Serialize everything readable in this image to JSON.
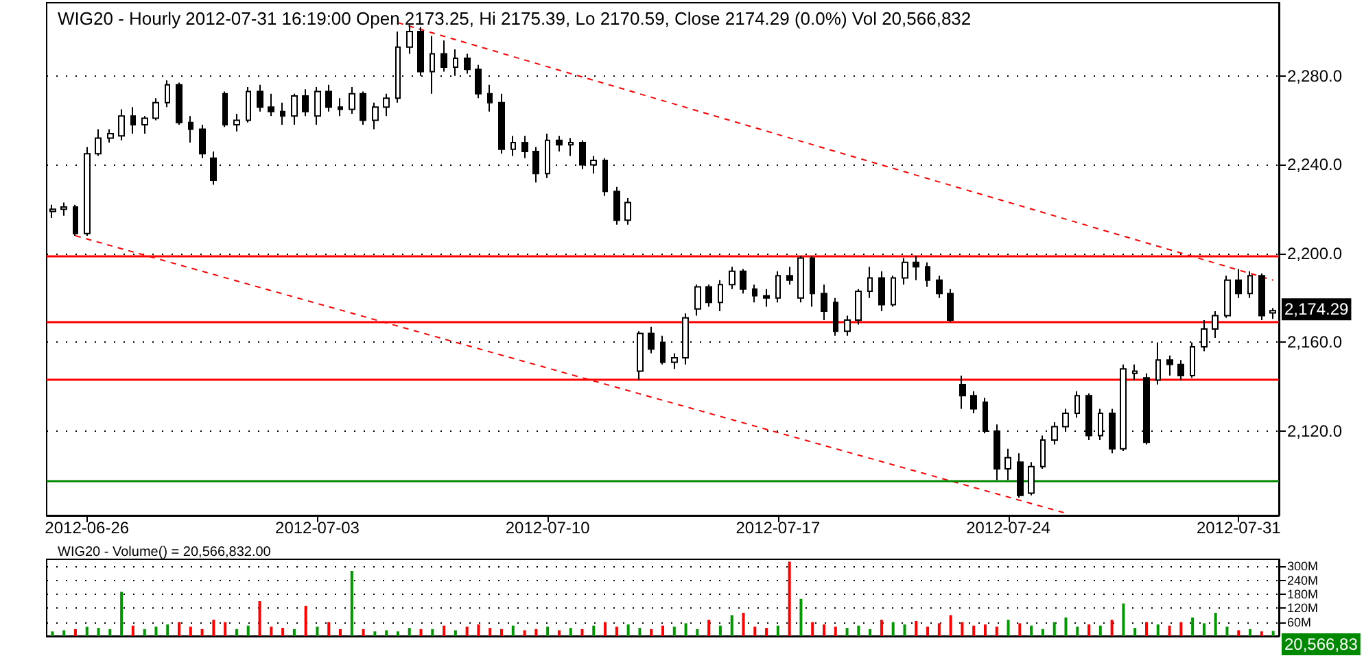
{
  "chart_data": [
    {
      "type": "candlestick",
      "title": "WIG20 - Hourly 2012-07-31 16:19:00 Open 2173.25, Hi 2175.39, Lo 2170.59, Close 2174.29 (0.0%) Vol 20,566,832",
      "categories": [
        null,
        null,
        null,
        "2012-06-26",
        null,
        null,
        null,
        null,
        null,
        null,
        null,
        null,
        null,
        null,
        null,
        null,
        null,
        null,
        null,
        null,
        null,
        null,
        null,
        "2012-07-03",
        null,
        null,
        null,
        null,
        null,
        null,
        null,
        null,
        null,
        null,
        null,
        null,
        null,
        null,
        null,
        null,
        null,
        null,
        null,
        "2012-07-10",
        null,
        null,
        null,
        null,
        null,
        null,
        null,
        null,
        null,
        null,
        null,
        null,
        null,
        null,
        null,
        null,
        null,
        null,
        null,
        "2012-07-17",
        null,
        null,
        null,
        null,
        null,
        null,
        null,
        null,
        null,
        null,
        null,
        null,
        null,
        null,
        null,
        null,
        null,
        null,
        null,
        "2012-07-24",
        null,
        null,
        null,
        null,
        null,
        null,
        null,
        null,
        null,
        null,
        null,
        null,
        null,
        null,
        null,
        null,
        null,
        null,
        null,
        "2012-07-31",
        null,
        null,
        null
      ],
      "ohlc": [
        [
          2219,
          2222,
          2216,
          2220
        ],
        [
          2220,
          2223,
          2217,
          2221
        ],
        [
          2221,
          2222,
          2208,
          2209
        ],
        [
          2209,
          2248,
          2208,
          2245
        ],
        [
          2245,
          2256,
          2244,
          2252
        ],
        [
          2252,
          2256,
          2250,
          2254
        ],
        [
          2253,
          2265,
          2251,
          2262
        ],
        [
          2262,
          2266,
          2254,
          2258
        ],
        [
          2258,
          2262,
          2254,
          2261
        ],
        [
          2261,
          2270,
          2260,
          2268
        ],
        [
          2268,
          2278,
          2266,
          2276
        ],
        [
          2276,
          2277,
          2258,
          2259
        ],
        [
          2259,
          2262,
          2250,
          2256
        ],
        [
          2256,
          2258,
          2243,
          2245
        ],
        [
          2243,
          2246,
          2231,
          2233
        ],
        [
          2272,
          2273,
          2257,
          2258
        ],
        [
          2258,
          2263,
          2255,
          2260
        ],
        [
          2260,
          2275,
          2259,
          2273
        ],
        [
          2273,
          2276,
          2264,
          2266
        ],
        [
          2266,
          2272,
          2262,
          2264
        ],
        [
          2264,
          2268,
          2258,
          2262
        ],
        [
          2262,
          2272,
          2258,
          2271
        ],
        [
          2271,
          2274,
          2262,
          2264
        ],
        [
          2262,
          2275,
          2258,
          2273
        ],
        [
          2273,
          2276,
          2264,
          2266
        ],
        [
          2266,
          2270,
          2262,
          2265
        ],
        [
          2265,
          2275,
          2263,
          2272
        ],
        [
          2272,
          2273,
          2258,
          2260
        ],
        [
          2260,
          2268,
          2256,
          2266
        ],
        [
          2266,
          2272,
          2262,
          2270
        ],
        [
          2270,
          2300,
          2268,
          2293
        ],
        [
          2293,
          2303,
          2290,
          2300
        ],
        [
          2300,
          2302,
          2280,
          2282
        ],
        [
          2282,
          2298,
          2272,
          2290
        ],
        [
          2290,
          2296,
          2282,
          2284
        ],
        [
          2284,
          2292,
          2280,
          2288
        ],
        [
          2288,
          2290,
          2281,
          2283
        ],
        [
          2283,
          2285,
          2270,
          2272
        ],
        [
          2272,
          2276,
          2264,
          2268
        ],
        [
          2268,
          2272,
          2245,
          2247
        ],
        [
          2247,
          2253,
          2244,
          2250
        ],
        [
          2250,
          2253,
          2243,
          2246
        ],
        [
          2246,
          2248,
          2232,
          2236
        ],
        [
          2236,
          2254,
          2234,
          2251
        ],
        [
          2251,
          2253,
          2246,
          2249
        ],
        [
          2249,
          2252,
          2244,
          2250
        ],
        [
          2250,
          2251,
          2238,
          2240
        ],
        [
          2240,
          2244,
          2236,
          2242
        ],
        [
          2242,
          2243,
          2226,
          2228
        ],
        [
          2228,
          2230,
          2213,
          2215
        ],
        [
          2215,
          2225,
          2213,
          2223
        ],
        [
          2147,
          2165,
          2143,
          2164
        ],
        [
          2164,
          2167,
          2155,
          2157
        ],
        [
          2160,
          2163,
          2150,
          2151
        ],
        [
          2151,
          2155,
          2148,
          2153
        ],
        [
          2153,
          2173,
          2150,
          2171
        ],
        [
          2175,
          2186,
          2172,
          2185
        ],
        [
          2185,
          2186,
          2176,
          2178
        ],
        [
          2178,
          2188,
          2174,
          2186
        ],
        [
          2186,
          2194,
          2184,
          2192
        ],
        [
          2192,
          2193,
          2182,
          2184
        ],
        [
          2184,
          2186,
          2178,
          2181
        ],
        [
          2181,
          2184,
          2176,
          2180
        ],
        [
          2180,
          2192,
          2178,
          2190
        ],
        [
          2190,
          2194,
          2186,
          2188
        ],
        [
          2180,
          2199,
          2178,
          2198
        ],
        [
          2198,
          2199,
          2176,
          2182
        ],
        [
          2182,
          2186,
          2170,
          2174
        ],
        [
          2178,
          2180,
          2163,
          2165
        ],
        [
          2165,
          2172,
          2163,
          2170
        ],
        [
          2170,
          2184,
          2168,
          2183
        ],
        [
          2183,
          2194,
          2180,
          2189
        ],
        [
          2189,
          2192,
          2174,
          2177
        ],
        [
          2177,
          2190,
          2176,
          2189
        ],
        [
          2189,
          2198,
          2186,
          2196
        ],
        [
          2196,
          2199,
          2188,
          2194
        ],
        [
          2194,
          2196,
          2185,
          2188
        ],
        [
          2188,
          2190,
          2180,
          2182
        ],
        [
          2182,
          2184,
          2169,
          2170
        ],
        [
          2141,
          2145,
          2130,
          2136
        ],
        [
          2136,
          2138,
          2128,
          2130
        ],
        [
          2133,
          2135,
          2119,
          2120
        ],
        [
          2120,
          2123,
          2098,
          2103
        ],
        [
          2103,
          2112,
          2098,
          2108
        ],
        [
          2106,
          2110,
          2090,
          2091
        ],
        [
          2092,
          2106,
          2091,
          2104
        ],
        [
          2104,
          2118,
          2103,
          2116
        ],
        [
          2116,
          2124,
          2114,
          2122
        ],
        [
          2122,
          2130,
          2120,
          2128
        ],
        [
          2128,
          2138,
          2126,
          2136
        ],
        [
          2136,
          2137,
          2116,
          2118
        ],
        [
          2118,
          2130,
          2116,
          2128
        ],
        [
          2128,
          2130,
          2110,
          2112
        ],
        [
          2112,
          2150,
          2111,
          2148
        ],
        [
          2146,
          2150,
          2143,
          2147
        ],
        [
          2144,
          2146,
          2114,
          2115
        ],
        [
          2143,
          2160,
          2141,
          2152
        ],
        [
          2152,
          2154,
          2145,
          2150
        ],
        [
          2150,
          2152,
          2143,
          2145
        ],
        [
          2145,
          2160,
          2144,
          2158
        ],
        [
          2158,
          2170,
          2156,
          2166
        ],
        [
          2166,
          2174,
          2162,
          2172
        ],
        [
          2172,
          2190,
          2171,
          2188
        ],
        [
          2188,
          2193,
          2180,
          2182
        ],
        [
          2182,
          2192,
          2180,
          2190
        ],
        [
          2190,
          2191,
          2170,
          2172
        ],
        [
          2173.25,
          2175.39,
          2170.59,
          2174.29
        ]
      ],
      "series": [
        {
          "type": "line",
          "color": "#ff0000",
          "line_style": "dashed",
          "values": [
            null,
            null,
            null,
            null,
            null,
            null,
            null,
            null,
            null,
            null,
            null,
            null,
            null,
            null,
            null,
            null,
            null,
            null,
            null,
            null,
            null,
            null,
            null,
            null,
            null,
            null,
            null,
            null,
            null,
            null,
            2304,
            null,
            null,
            null,
            null,
            null,
            null,
            null,
            null,
            null,
            null,
            null,
            null,
            null,
            null,
            null,
            null,
            null,
            null,
            null,
            null,
            null,
            null,
            null,
            null,
            null,
            null,
            null,
            null,
            null,
            null,
            null,
            null,
            null,
            null,
            null,
            null,
            null,
            null,
            null,
            null,
            null,
            null,
            null,
            null,
            null,
            null,
            null,
            null,
            null,
            null,
            null,
            null,
            null,
            null,
            null,
            null,
            null,
            null,
            null,
            null,
            null,
            null,
            null,
            null,
            null,
            null,
            null,
            null,
            null,
            null,
            null,
            null,
            null,
            null,
            null,
            2188
          ]
        },
        {
          "type": "line",
          "color": "#ff0000",
          "line_style": "dashed",
          "values": [
            null,
            null,
            2208,
            null,
            null,
            null,
            null,
            null,
            null,
            null,
            null,
            null,
            null,
            null,
            null,
            null,
            null,
            null,
            null,
            null,
            null,
            null,
            null,
            null,
            null,
            null,
            null,
            null,
            null,
            null,
            null,
            null,
            null,
            null,
            null,
            null,
            null,
            null,
            null,
            null,
            null,
            null,
            null,
            null,
            null,
            null,
            null,
            null,
            null,
            null,
            null,
            null,
            null,
            null,
            null,
            null,
            null,
            null,
            null,
            null,
            null,
            null,
            null,
            null,
            null,
            null,
            null,
            null,
            null,
            null,
            null,
            null,
            null,
            null,
            null,
            null,
            null,
            null,
            null,
            null,
            null,
            null,
            null,
            null,
            null,
            null,
            null,
            null,
            2083,
            null,
            null,
            null,
            null,
            null,
            null,
            null,
            null,
            null,
            null,
            null,
            null,
            null,
            null,
            null,
            null,
            null,
            null
          ]
        }
      ],
      "ref_lines": [
        {
          "axis": "y",
          "value": 2198.8,
          "color": "#ff0000"
        },
        {
          "axis": "y",
          "value": 2169.5,
          "color": "#ff0000"
        },
        {
          "axis": "y",
          "value": 2143.3,
          "color": "#ff0000"
        },
        {
          "axis": "y",
          "value": 2097.3,
          "color": "#008800"
        }
      ],
      "annotations": [
        "2,174.29"
      ],
      "ylim": [
        2082,
        2313
      ],
      "yticks": [
        {
          "value": 2120,
          "label": "2,120.0"
        },
        {
          "value": 2160,
          "label": "2,160.0"
        },
        {
          "value": 2200,
          "label": "2,200.0"
        },
        {
          "value": 2240,
          "label": "2,240.0"
        },
        {
          "value": 2280,
          "label": "2,280.0"
        }
      ],
      "grid": "y"
    },
    {
      "type": "bar",
      "title": "WIG20 - Volume() = 20,566,832.00",
      "categories": [
        null,
        null,
        null,
        null,
        null,
        null,
        null,
        null,
        null,
        null,
        null,
        null,
        null,
        null,
        null,
        null,
        null,
        null,
        null,
        null,
        null,
        null,
        null,
        null,
        null,
        null,
        null,
        null,
        null,
        null,
        null,
        null,
        null,
        null,
        null,
        null,
        null,
        null,
        null,
        null,
        null,
        null,
        null,
        null,
        null,
        null,
        null,
        null,
        null,
        null,
        null,
        null,
        null,
        null,
        null,
        null,
        null,
        null,
        null,
        null,
        null,
        null,
        null,
        null,
        null,
        null,
        null,
        null,
        null,
        null,
        null,
        null,
        null,
        null,
        null,
        null,
        null,
        null,
        null,
        null,
        null,
        null,
        null,
        null,
        null,
        null,
        null,
        null,
        null,
        null,
        null,
        null,
        null,
        null,
        null,
        null,
        null,
        null,
        null,
        null,
        null,
        null,
        null,
        null,
        null,
        null,
        null
      ],
      "values": [
        20,
        25,
        30,
        40,
        35,
        30,
        190,
        45,
        30,
        40,
        50,
        60,
        40,
        30,
        70,
        60,
        30,
        45,
        150,
        40,
        35,
        30,
        130,
        40,
        60,
        30,
        280,
        30,
        20,
        25,
        20,
        35,
        30,
        30,
        45,
        25,
        40,
        50,
        35,
        30,
        45,
        25,
        30,
        40,
        25,
        35,
        30,
        45,
        60,
        40,
        50,
        35,
        30,
        45,
        40,
        55,
        30,
        70,
        45,
        90,
        100,
        40,
        35,
        45,
        320,
        160,
        60,
        50,
        40,
        35,
        45,
        30,
        70,
        60,
        50,
        65,
        40,
        55,
        90,
        60,
        45,
        50,
        40,
        70,
        55,
        45,
        30,
        60,
        80,
        40,
        50,
        45,
        70,
        140,
        35,
        60,
        50,
        45,
        60,
        80,
        55,
        100,
        40,
        25,
        30,
        20,
        22
      ],
      "colors": [
        "#009900",
        "#009900",
        "#ff0000",
        "#009900",
        "#009900",
        "#009900",
        "#009900",
        "#ff0000",
        "#009900",
        "#009900",
        "#009900",
        "#ff0000",
        "#ff0000",
        "#ff0000",
        "#ff0000",
        "#ff0000",
        "#009900",
        "#009900",
        "#ff0000",
        "#ff0000",
        "#ff0000",
        "#009900",
        "#ff0000",
        "#009900",
        "#ff0000",
        "#ff0000",
        "#009900",
        "#ff0000",
        "#009900",
        "#009900",
        "#009900",
        "#009900",
        "#ff0000",
        "#009900",
        "#ff0000",
        "#009900",
        "#ff0000",
        "#ff0000",
        "#ff0000",
        "#ff0000",
        "#009900",
        "#ff0000",
        "#ff0000",
        "#009900",
        "#ff0000",
        "#009900",
        "#ff0000",
        "#009900",
        "#ff0000",
        "#ff0000",
        "#009900",
        "#009900",
        "#ff0000",
        "#ff0000",
        "#009900",
        "#009900",
        "#009900",
        "#ff0000",
        "#009900",
        "#009900",
        "#ff0000",
        "#ff0000",
        "#ff0000",
        "#009900",
        "#ff0000",
        "#009900",
        "#ff0000",
        "#ff0000",
        "#ff0000",
        "#009900",
        "#009900",
        "#009900",
        "#ff0000",
        "#009900",
        "#009900",
        "#ff0000",
        "#ff0000",
        "#ff0000",
        "#ff0000",
        "#ff0000",
        "#ff0000",
        "#ff0000",
        "#ff0000",
        "#009900",
        "#ff0000",
        "#009900",
        "#009900",
        "#009900",
        "#009900",
        "#009900",
        "#ff0000",
        "#009900",
        "#ff0000",
        "#009900",
        "#009900",
        "#ff0000",
        "#009900",
        "#ff0000",
        "#ff0000",
        "#009900",
        "#009900",
        "#009900",
        "#009900",
        "#ff0000",
        "#009900",
        "#ff0000",
        "#009900"
      ],
      "annotations": [
        "20,566,83"
      ],
      "ylim": [
        0,
        330
      ],
      "yticks": [
        {
          "value": 60,
          "label": "60M"
        },
        {
          "value": 120,
          "label": "120M"
        },
        {
          "value": 180,
          "label": "180M"
        },
        {
          "value": 240,
          "label": "240M"
        },
        {
          "value": 300,
          "label": "300M"
        }
      ],
      "grid": "y",
      "tick_labels": "y"
    }
  ]
}
